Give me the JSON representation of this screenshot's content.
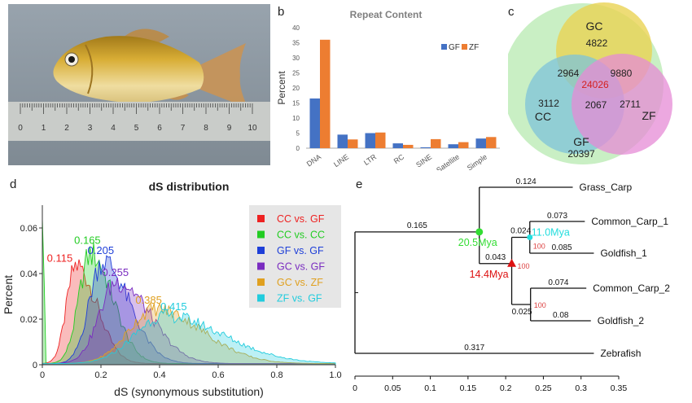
{
  "panels": {
    "a": "a",
    "b": "b",
    "c": "c",
    "d": "d",
    "e": "e"
  },
  "photo": {
    "ruler_numbers": [
      "0",
      "1",
      "2",
      "3",
      "4",
      "5",
      "6",
      "7",
      "8",
      "9",
      "10"
    ],
    "colors": {
      "background": "#8f9aa3",
      "fish_body": "#d4a62a",
      "fish_belly": "#efe3b8",
      "fins": "#c58b4a",
      "ruler": "#c9ccc9"
    }
  },
  "chart_data": [
    {
      "type": "bar",
      "panel": "b",
      "title": "Repeat Content",
      "xlabel": "",
      "ylabel": "Percent",
      "ylim": [
        0,
        40
      ],
      "yticks": [
        "0",
        "5",
        "10",
        "15",
        "20",
        "25",
        "30",
        "35",
        "40"
      ],
      "categories": [
        "DNA",
        "LINE",
        "LTR",
        "RC",
        "SINE",
        "Satellite",
        "Simple"
      ],
      "series": [
        {
          "name": "GF",
          "color": "#4472c4",
          "values": [
            16.5,
            4.5,
            5.0,
            1.6,
            0.3,
            1.3,
            3.2
          ]
        },
        {
          "name": "ZF",
          "color": "#ed7d31",
          "values": [
            36.0,
            2.9,
            5.2,
            1.1,
            3.0,
            2.0,
            3.7
          ]
        }
      ],
      "legend_position": "top-right"
    },
    {
      "type": "venn",
      "panel": "c",
      "sets": [
        {
          "name": "GC",
          "color": "#ead354"
        },
        {
          "name": "CC",
          "color": "#7ec3d9"
        },
        {
          "name": "ZF",
          "color": "#e58bd6"
        },
        {
          "name": "GF",
          "color": "#c9efc4"
        }
      ],
      "regions": {
        "GC_only": "4822",
        "GC_CC": "2964",
        "GC_ZF": "9880",
        "all_core": "24026",
        "CC_only": "3112",
        "CC_ZF": "2067",
        "ZF_only": "2711",
        "GF_only": "20397"
      },
      "core_color": "#d42020"
    },
    {
      "type": "area",
      "panel": "d",
      "title": "dS distribution",
      "xlabel": "dS (synonymous substitution)",
      "ylabel": "Percent",
      "xlim": [
        0,
        1.0
      ],
      "ylim": [
        0,
        0.07
      ],
      "xticks": [
        "0",
        "0.2",
        "0.4",
        "0.6",
        "0.8",
        "1.0"
      ],
      "yticks": [
        "0",
        "0.02",
        "0.04",
        "0.06"
      ],
      "legend_position": "top-right",
      "series": [
        {
          "name": "CC vs. GF",
          "color": "#ee2222",
          "peak_label": "0.115",
          "mode": 0.115,
          "peak": 0.043,
          "spread_left": 0.032,
          "spread_right": 0.07
        },
        {
          "name": "CC vs. CC",
          "color": "#22cc22",
          "peak_label": "0.165",
          "mode": 0.165,
          "peak": 0.048,
          "spread_left": 0.04,
          "spread_right": 0.075
        },
        {
          "name": "GF vs. GF",
          "color": "#1e3fd8",
          "peak_label": "0.205",
          "mode": 0.205,
          "peak": 0.045,
          "spread_left": 0.045,
          "spread_right": 0.09
        },
        {
          "name": "GC vs. GF",
          "color": "#7a2cc0",
          "peak_label": "0.255",
          "mode": 0.255,
          "peak": 0.036,
          "spread_left": 0.06,
          "spread_right": 0.11
        },
        {
          "name": "GC vs. ZF",
          "color": "#e0a020",
          "peak_label": "0.385",
          "mode": 0.385,
          "peak": 0.024,
          "spread_left": 0.09,
          "spread_right": 0.16
        },
        {
          "name": "ZF vs. GF",
          "color": "#22ccdd",
          "peak_label": "0.415",
          "mode": 0.415,
          "peak": 0.021,
          "spread_left": 0.1,
          "spread_right": 0.2
        }
      ]
    },
    {
      "type": "tree",
      "panel": "e",
      "xlim": [
        0,
        0.35
      ],
      "xticks": [
        "0",
        "0.05",
        "0.1",
        "0.15",
        "0.2",
        "0.25",
        "0.3",
        "0.35"
      ],
      "taxa": [
        "Grass_Carp",
        "Common_Carp_1",
        "Goldfish_1",
        "Common_Carp_2",
        "Goldfish_2",
        "Zebrafish"
      ],
      "branch_lengths": {
        "Grass_Carp": "0.124",
        "Common_Carp_1": "0.073",
        "Goldfish_1": "0.085",
        "Common_Carp_2": "0.074",
        "Goldfish_2": "0.08",
        "Zebrafish": "0.317",
        "root_to_cyprinid": "0.165",
        "cyprinid_to_allotetraploid": "0.043",
        "to_subgenome_1": "0.024",
        "to_subgenome_2": "0.025"
      },
      "nodes": [
        {
          "id": "cyprinid",
          "x": 0.165,
          "date": "20.5Mya",
          "color": "#33dd33",
          "marker": "circle"
        },
        {
          "id": "allotetraploid",
          "x": 0.208,
          "date": "14.4Mya",
          "color": "#dd1111",
          "marker": "triangle",
          "support": "100"
        },
        {
          "id": "subgenome_1",
          "x": 0.232,
          "date": "11.0Mya",
          "color": "#22dddd",
          "marker": "circle",
          "support": "100"
        },
        {
          "id": "subgenome_2",
          "x": 0.233,
          "support": "100"
        }
      ],
      "support_color": "#dd4444"
    }
  ]
}
